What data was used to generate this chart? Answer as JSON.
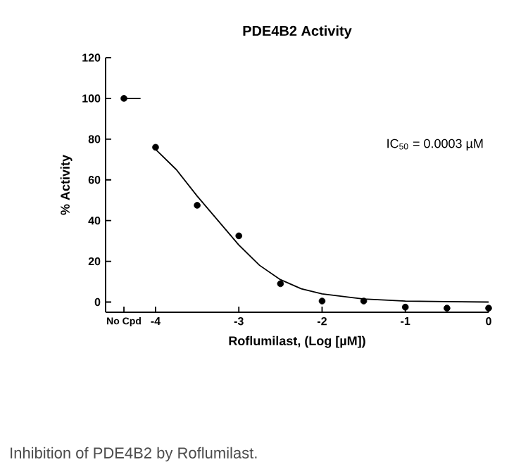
{
  "chart_data": {
    "type": "scatter",
    "title": "PDE4B2 Activity",
    "xlabel": "Roflumilast, (Log [µM])",
    "ylabel": "% Activity",
    "xlim": [
      -4.6,
      0
    ],
    "ylim": [
      -5,
      120
    ],
    "xticks": [
      {
        "value": -4.38,
        "label": "No Cpd"
      },
      -4,
      -3,
      -2,
      -1,
      0
    ],
    "yticks": [
      0,
      20,
      40,
      60,
      80,
      100,
      120
    ],
    "grid": false,
    "series": [
      {
        "color": "#000000",
        "marker": "circle",
        "x": [
          -4.38,
          -4,
          -3.5,
          -3,
          -2.5,
          -2,
          -1.5,
          -1,
          -0.5,
          0
        ],
        "values": [
          100,
          76,
          47.5,
          32.5,
          9,
          0.5,
          0.5,
          -2.5,
          -3,
          -3
        ]
      },
      {
        "type": "line",
        "color": "#000000",
        "marker": "none",
        "x": [
          -4,
          -3.75,
          -3.5,
          -3.25,
          -3,
          -2.75,
          -2.5,
          -2.25,
          -2,
          -1.5,
          -1,
          -0.5,
          0
        ],
        "values": [
          75,
          65,
          52,
          40,
          28,
          18,
          11,
          6.5,
          4,
          1.5,
          0.5,
          0.2,
          0
        ]
      },
      {
        "type": "line",
        "color": "#000000",
        "marker": "none",
        "x": [
          -4.38,
          -4.18
        ],
        "values": [
          100,
          100
        ]
      }
    ],
    "annotations": [
      "IC$_{50}$ = 0.0003 µM",
      "Inhibition of PDE4B2 by Roflumilast."
    ]
  }
}
